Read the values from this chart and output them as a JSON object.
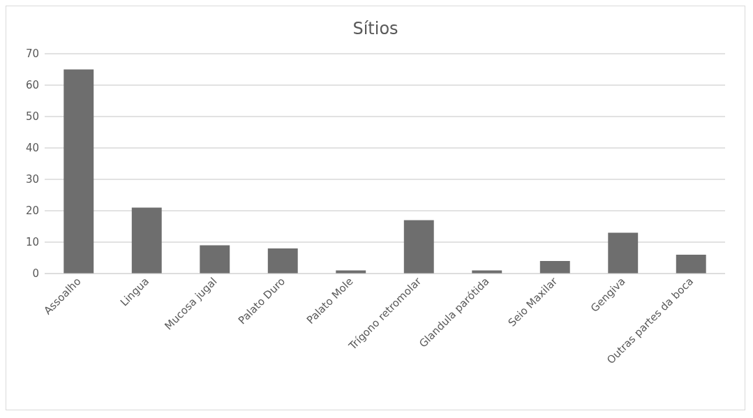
{
  "chart_data": {
    "type": "bar",
    "title": "Sítios",
    "categories": [
      "Assoalho",
      "Lingua",
      "Mucosa jugal",
      "Palato Duro",
      "Palato Mole",
      "Trígono retromolar",
      "Glandula parótida",
      "Seio Maxilar",
      "Gengiva",
      "Outras partes da boca"
    ],
    "values": [
      65,
      21,
      9,
      8,
      1,
      17,
      1,
      4,
      13,
      6
    ],
    "color": "#6e6e6e",
    "ylim": [
      0,
      70
    ],
    "yticks": [
      0,
      10,
      20,
      30,
      40,
      50,
      60,
      70
    ],
    "grid": "y"
  }
}
